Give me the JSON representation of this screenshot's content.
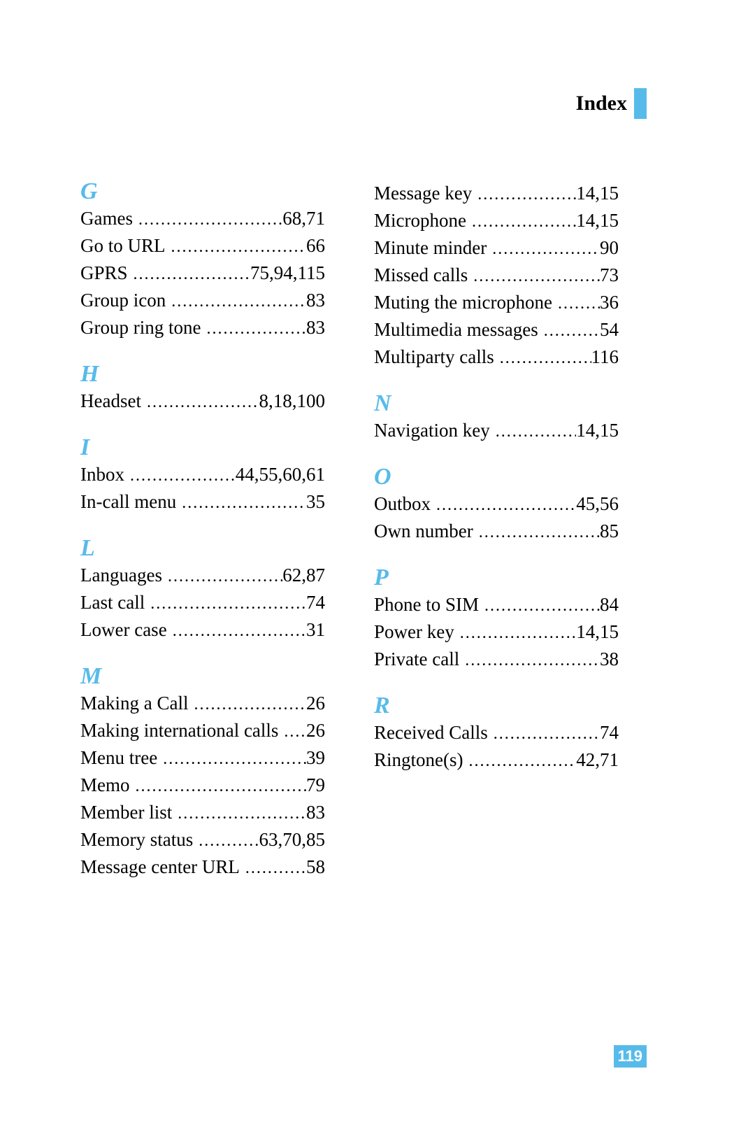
{
  "header": {
    "title": "Index",
    "bar_color": "#57bbea"
  },
  "page_number": "119",
  "page_number_bg": "#57bbea",
  "page_number_color": "#ffffff",
  "accent_color": "#57bbea",
  "text_color": "#000000",
  "font_family": "Times New Roman",
  "letter_font_style": "italic bold",
  "letter_font_size_pt": 26,
  "entry_font_size_pt": 20,
  "left_column": [
    {
      "letter": "G",
      "entries": [
        {
          "label": "Games",
          "pages": "68,71"
        },
        {
          "label": "Go to URL",
          "pages": "66"
        },
        {
          "label": "GPRS",
          "pages": "75,94,115"
        },
        {
          "label": "Group icon",
          "pages": "83"
        },
        {
          "label": "Group ring tone",
          "pages": "83"
        }
      ]
    },
    {
      "letter": "H",
      "entries": [
        {
          "label": "Headset",
          "pages": "8,18,100"
        }
      ]
    },
    {
      "letter": "I",
      "entries": [
        {
          "label": "Inbox",
          "pages": "44,55,60,61"
        },
        {
          "label": "In-call menu",
          "pages": "35"
        }
      ]
    },
    {
      "letter": "L",
      "entries": [
        {
          "label": "Languages",
          "pages": "62,87"
        },
        {
          "label": "Last call",
          "pages": "74"
        },
        {
          "label": "Lower case",
          "pages": "31"
        }
      ]
    },
    {
      "letter": "M",
      "entries": [
        {
          "label": "Making a Call",
          "pages": "26"
        },
        {
          "label": "Making international calls",
          "pages": "26"
        },
        {
          "label": "Menu tree",
          "pages": "39"
        },
        {
          "label": "Memo",
          "pages": "79"
        },
        {
          "label": "Member list",
          "pages": "83"
        },
        {
          "label": "Memory status",
          "pages": "63,70,85"
        },
        {
          "label": "Message center URL",
          "pages": "58"
        }
      ]
    }
  ],
  "right_column": [
    {
      "letter": null,
      "entries": [
        {
          "label": "Message key",
          "pages": "14,15"
        },
        {
          "label": "Microphone",
          "pages": "14,15"
        },
        {
          "label": "Minute minder",
          "pages": "90"
        },
        {
          "label": "Missed calls",
          "pages": "73"
        },
        {
          "label": "Muting the microphone",
          "pages": "36"
        },
        {
          "label": "Multimedia messages",
          "pages": "54"
        },
        {
          "label": "Multiparty calls",
          "pages": "116"
        }
      ]
    },
    {
      "letter": "N",
      "entries": [
        {
          "label": "Navigation key",
          "pages": "14,15"
        }
      ]
    },
    {
      "letter": "O",
      "entries": [
        {
          "label": "Outbox",
          "pages": "45,56"
        },
        {
          "label": "Own number",
          "pages": "85"
        }
      ]
    },
    {
      "letter": "P",
      "entries": [
        {
          "label": "Phone to SIM",
          "pages": "84"
        },
        {
          "label": "Power key",
          "pages": "14,15"
        },
        {
          "label": "Private call",
          "pages": "38"
        }
      ]
    },
    {
      "letter": "R",
      "entries": [
        {
          "label": "Received Calls",
          "pages": "74"
        },
        {
          "label": "Ringtone(s)",
          "pages": "42,71"
        }
      ]
    }
  ]
}
